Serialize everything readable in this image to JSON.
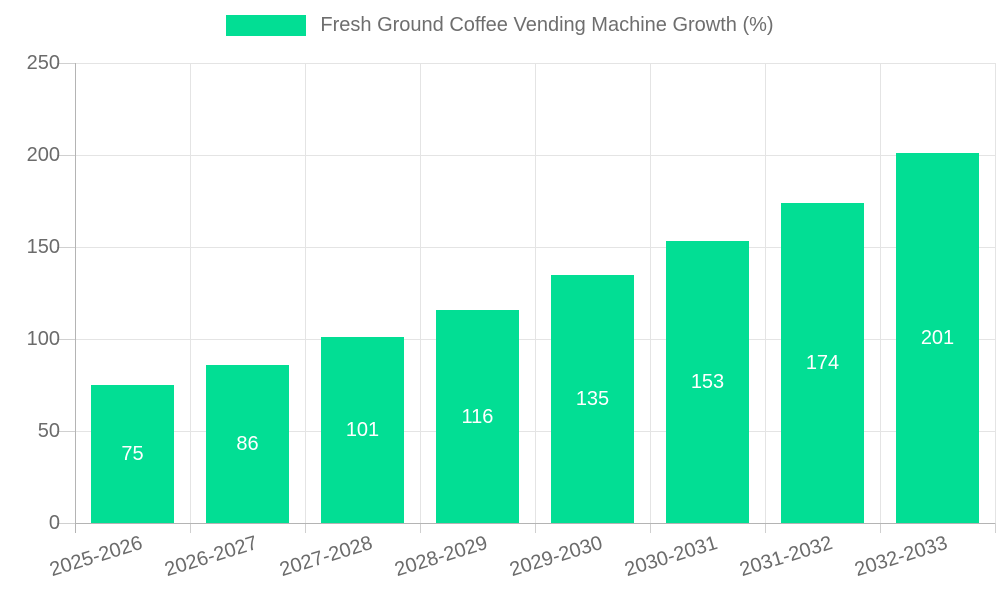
{
  "chart_data": {
    "type": "bar",
    "title": "Fresh Ground Coffee Vending Machine Growth (%)",
    "categories": [
      "2025-2026",
      "2026-2027",
      "2027-2028",
      "2028-2029",
      "2029-2030",
      "2030-2031",
      "2031-2032",
      "2032-2033"
    ],
    "series": [
      {
        "name": "Fresh Ground Coffee Vending Machine Growth (%)",
        "values": [
          75,
          86,
          101,
          116,
          135,
          153,
          174,
          201
        ]
      }
    ],
    "xlabel": "",
    "ylabel": "",
    "ylim": [
      0,
      250
    ],
    "yticks": [
      0,
      50,
      100,
      150,
      200,
      250
    ],
    "grid": true,
    "legend_position": "top",
    "x_label_rotation_deg": -17,
    "colors": {
      "bar": "#02DE94",
      "bar_value_label": "#ffffff",
      "axis_text": "#6b6b6b",
      "legend_text": "#6e6e6e",
      "gridline": "#e4e4e4",
      "tick": "#d0d0d0",
      "axis_line": "#b4b4b4",
      "background": "#ffffff"
    }
  }
}
